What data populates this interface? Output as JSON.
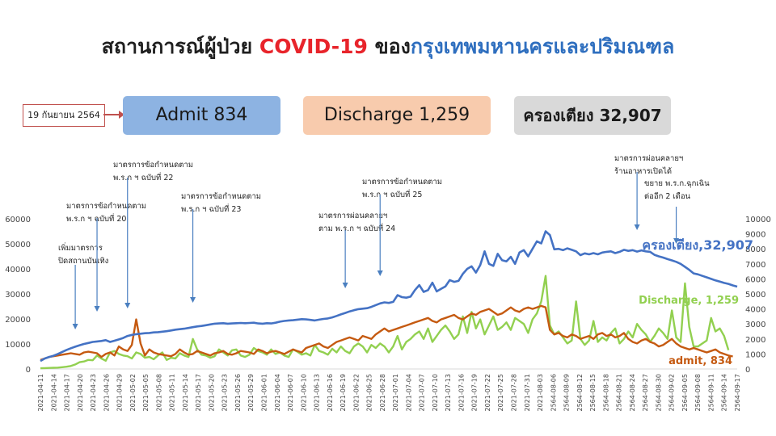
{
  "title": {
    "part1": "สถานการณ์ผู้ป่วย ",
    "part2": "COVID-19",
    "part3": " ของ",
    "part4": "กรุงเทพมหานครและปริมณฑล"
  },
  "date_label": "19 กันยายน 2564",
  "summary": {
    "admit": "Admit 834",
    "discharge": "Discharge 1,259",
    "beds": "ครองเตียง 32,907"
  },
  "colors": {
    "beds": "#4472c4",
    "discharge": "#92d050",
    "admit": "#c55a11",
    "arrow": "#4a7fc0"
  },
  "annotations": [
    {
      "lines": [
        "เพิ่มมาตรการ",
        "ปิดสถานบันเทิง"
      ],
      "x_index": 8
    },
    {
      "lines": [
        "มาตรการข้อกำหนดตาม",
        "พ.ร.ก ฯ ฉบับที่ 20"
      ],
      "x_index": 13
    },
    {
      "lines": [
        "มาตรการข้อกำหนดตาม",
        "พ.ร.ก ฯ ฉบับที่ 22"
      ],
      "x_index": 20
    },
    {
      "lines": [
        "มาตรการข้อกำหนดตาม",
        "พ.ร.ก ฯ ฉบับที่ 23"
      ],
      "x_index": 35
    },
    {
      "lines": [
        "มาตรการผ่อนคลายฯ",
        "ตาม พ.ร.ก ฯ ฉบับที่ 24"
      ],
      "x_index": 70
    },
    {
      "lines": [
        "มาตรการข้อกำหนดตาม",
        "พ.ร.ก ฯ ฉบับที่ 25"
      ],
      "x_index": 78
    },
    {
      "lines": [
        "มาตรการผ่อนคลายฯ",
        "ร้านอาหารเปิดได้"
      ],
      "x_index": 137
    },
    {
      "lines": [
        "ขยาย พ.ร.ก.ฉุกเฉิน",
        "ต่ออีก 2 เดือน"
      ],
      "x_index": 146
    }
  ],
  "series_labels": {
    "beds": "ครองเตียง,32,907",
    "discharge": "Discharge, 1,259",
    "admit": "admit, 834"
  },
  "chart_data": {
    "type": "line",
    "y_left": {
      "min": 0,
      "max": 60000,
      "ticks": [
        0,
        10000,
        20000,
        30000,
        40000,
        50000,
        60000
      ]
    },
    "y_right": {
      "min": 0,
      "max": 10000,
      "ticks": [
        0,
        1000,
        2000,
        3000,
        4000,
        5000,
        6000,
        7000,
        8000,
        9000,
        10000
      ]
    },
    "x_tick_labels": [
      "2021-04-11",
      "2021-04-14",
      "2021-04-17",
      "2021-04-20",
      "2021-04-23",
      "2021-04-26",
      "2021-04-29",
      "2021-05-02",
      "2021-05-05",
      "2021-05-08",
      "2021-05-11",
      "2021-05-14",
      "2021-05-17",
      "2021-05-20",
      "2021-05-23",
      "2021-05-26",
      "2021-05-29",
      "2021-06-01",
      "2021-06-04",
      "2021-06-07",
      "2021-06-10",
      "2021-06-13",
      "2021-06-16",
      "2021-06-19",
      "2021-06-22",
      "2021-06-25",
      "2021-06-28",
      "2021-07-01",
      "2021-07-04",
      "2021-07-07",
      "2021-07-10",
      "2021-07-13",
      "2021-07-16",
      "2021-07-19",
      "2021-07-22",
      "2021-07-25",
      "2021-07-28",
      "2021-07-31",
      "2021-08-03",
      "2564-08-06",
      "2564-08-09",
      "2564-08-12",
      "2564-08-15",
      "2564-08-18",
      "2564-08-21",
      "2564-08-24",
      "2564-08-27",
      "2564-08-30",
      "2564-09-02",
      "2564-09-05",
      "2564-09-08",
      "2564-09-11",
      "2564-09-14",
      "2564-09-17"
    ],
    "x_points": 161,
    "series": [
      {
        "name": "ครองเตียง",
        "axis": "left",
        "values": [
          3200,
          4200,
          4800,
          5300,
          6000,
          6800,
          7600,
          8300,
          8900,
          9500,
          10000,
          10400,
          10800,
          11000,
          11200,
          11500,
          10800,
          11300,
          11800,
          12400,
          13200,
          13600,
          13900,
          14100,
          14300,
          14400,
          14600,
          14700,
          14900,
          15100,
          15400,
          15700,
          15900,
          16100,
          16400,
          16700,
          17000,
          17200,
          17500,
          17800,
          18100,
          18200,
          18300,
          18100,
          18200,
          18300,
          18400,
          18300,
          18400,
          18500,
          18200,
          18100,
          18300,
          18200,
          18500,
          18900,
          19200,
          19400,
          19500,
          19700,
          19900,
          19800,
          19600,
          19400,
          19700,
          20000,
          20200,
          20600,
          21200,
          21800,
          22400,
          23000,
          23500,
          23900,
          24100,
          24300,
          24800,
          25500,
          26200,
          26600,
          26400,
          26800,
          29500,
          28700,
          28500,
          28900,
          31500,
          33500,
          30800,
          31500,
          34500,
          31000,
          32000,
          33000,
          35500,
          34800,
          35200,
          38000,
          40000,
          41000,
          38500,
          41500,
          47000,
          42000,
          41200,
          46000,
          43500,
          43000,
          44800,
          42000,
          46500,
          47500,
          45000,
          48000,
          51000,
          50200,
          55000,
          53500,
          47800,
          48000,
          47500,
          48200,
          47600,
          47000,
          45500,
          46200,
          45800,
          46300,
          45800,
          46500,
          46800,
          47000,
          46300,
          46800,
          47600,
          47200,
          47500,
          46900,
          47400,
          47000,
          46800,
          45600,
          45000,
          44500,
          43900,
          43400,
          42800,
          42000,
          40800,
          39600,
          38200,
          37800,
          37200,
          36600,
          36000,
          35400,
          34900,
          34400,
          34000,
          33400,
          32907
        ]
      },
      {
        "name": "Discharge",
        "axis": "right",
        "values": [
          50,
          60,
          70,
          80,
          90,
          120,
          150,
          200,
          300,
          450,
          500,
          600,
          580,
          900,
          700,
          550,
          1100,
          1200,
          1000,
          900,
          850,
          700,
          1100,
          1000,
          750,
          800,
          650,
          900,
          1100,
          600,
          750,
          700,
          1050,
          900,
          800,
          2000,
          1300,
          950,
          900,
          750,
          850,
          1300,
          1100,
          900,
          1250,
          1300,
          900,
          800,
          950,
          1400,
          1200,
          1100,
          950,
          1300,
          1000,
          1100,
          900,
          800,
          1300,
          1150,
          950,
          1050,
          900,
          1600,
          1200,
          1100,
          950,
          1350,
          1100,
          1500,
          1200,
          1050,
          1500,
          1700,
          1500,
          1100,
          1600,
          1400,
          1700,
          1500,
          1100,
          1500,
          2200,
          1300,
          1800,
          2000,
          2300,
          2500,
          2000,
          2700,
          1800,
          2200,
          2600,
          2900,
          2500,
          2000,
          2300,
          3500,
          2400,
          3800,
          2700,
          3300,
          2300,
          2900,
          3500,
          2600,
          2800,
          3100,
          2600,
          3400,
          3200,
          3000,
          2400,
          3300,
          3700,
          4500,
          6200,
          2900,
          2300,
          2500,
          2100,
          1700,
          1900,
          4500,
          2000,
          1600,
          1900,
          3200,
          1800,
          2100,
          1900,
          2400,
          2700,
          1700,
          2000,
          2500,
          2100,
          3000,
          2600,
          2300,
          1800,
          2200,
          2700,
          2400,
          2000,
          3900,
          2100,
          1800,
          5700,
          2800,
          1500,
          1500,
          1700,
          1900,
          3400,
          2500,
          2700,
          2200,
          1259
        ]
      },
      {
        "name": "admit",
        "axis": "right",
        "values": [
          600,
          700,
          800,
          850,
          900,
          950,
          1000,
          1050,
          1000,
          950,
          1100,
          1150,
          1100,
          1050,
          800,
          1000,
          1100,
          900,
          1500,
          1300,
          1200,
          1600,
          3300,
          1700,
          900,
          1300,
          1100,
          1000,
          950,
          900,
          850,
          1000,
          1300,
          1100,
          950,
          1000,
          1200,
          1100,
          1000,
          900,
          1050,
          1100,
          1200,
          1000,
          950,
          1050,
          1200,
          1150,
          1100,
          1000,
          1300,
          1200,
          1050,
          1150,
          1200,
          1100,
          1000,
          1150,
          1300,
          1200,
          1100,
          1400,
          1500,
          1600,
          1700,
          1500,
          1400,
          1600,
          1800,
          1900,
          2000,
          2100,
          2000,
          1900,
          2200,
          2100,
          2000,
          2300,
          2500,
          2700,
          2500,
          2600,
          2700,
          2800,
          2900,
          3000,
          3100,
          3200,
          3300,
          3400,
          3200,
          3100,
          3300,
          3400,
          3500,
          3600,
          3400,
          3300,
          3500,
          3700,
          3600,
          3800,
          3900,
          4000,
          3800,
          3600,
          3700,
          3900,
          4100,
          3900,
          3800,
          4000,
          4100,
          4000,
          4100,
          4200,
          4100,
          2600,
          2300,
          2400,
          2200,
          2100,
          2300,
          2200,
          2000,
          2100,
          2200,
          2000,
          2300,
          2400,
          2200,
          2300,
          2100,
          2200,
          2400,
          2000,
          1800,
          1700,
          1900,
          2000,
          1800,
          1700,
          1500,
          1600,
          1800,
          2000,
          1700,
          1500,
          1400,
          1300,
          1400,
          1300,
          1200,
          1100,
          1200,
          1300,
          1100,
          1000,
          900,
          834
        ]
      }
    ]
  }
}
